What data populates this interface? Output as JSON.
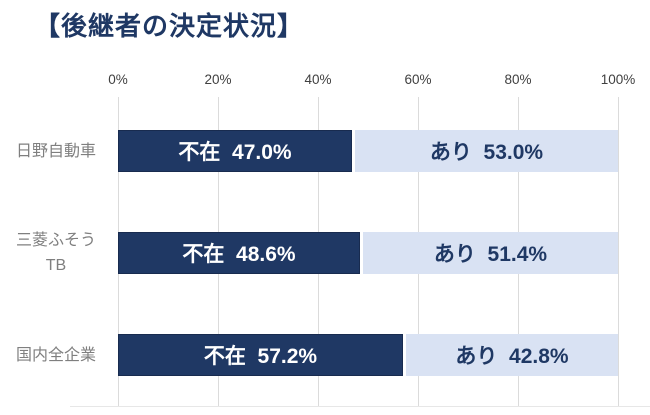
{
  "title": {
    "text": "【後継者の決定状況】",
    "color": "#1F3864"
  },
  "colors": {
    "bar_dark": "#1F3864",
    "bar_light": "#D9E2F3",
    "bar_dark_text": "#FFFFFF",
    "bar_light_text": "#1F3864",
    "category_label": "#7F7F7F",
    "axis_label": "#404040",
    "gridline": "#DBDBDB"
  },
  "chart_data": {
    "type": "bar",
    "orientation": "horizontal",
    "stacked": true,
    "title": "後継者の決定状況",
    "categories": [
      "日野自動車",
      "三菱ふそう\nTB",
      "国内全企業"
    ],
    "series": [
      {
        "name": "不在",
        "values": [
          47.0,
          48.6,
          57.2
        ],
        "color": "#1F3864",
        "label_color": "#FFFFFF"
      },
      {
        "name": "あり",
        "values": [
          53.0,
          51.4,
          42.8
        ],
        "color": "#D9E2F3",
        "label_color": "#1F3864"
      }
    ],
    "segment_labels": [
      [
        "不在  47.0%",
        "あり  53.0%"
      ],
      [
        "不在  48.6%",
        "あり  51.4%"
      ],
      [
        "不在  57.2%",
        "あり  42.8%"
      ]
    ],
    "x_axis": {
      "ticks": [
        "0%",
        "20%",
        "40%",
        "60%",
        "80%",
        "100%"
      ],
      "values": [
        0,
        20,
        40,
        60,
        80,
        100
      ],
      "min": 0,
      "max": 100
    },
    "grid": true,
    "legend": "none"
  }
}
